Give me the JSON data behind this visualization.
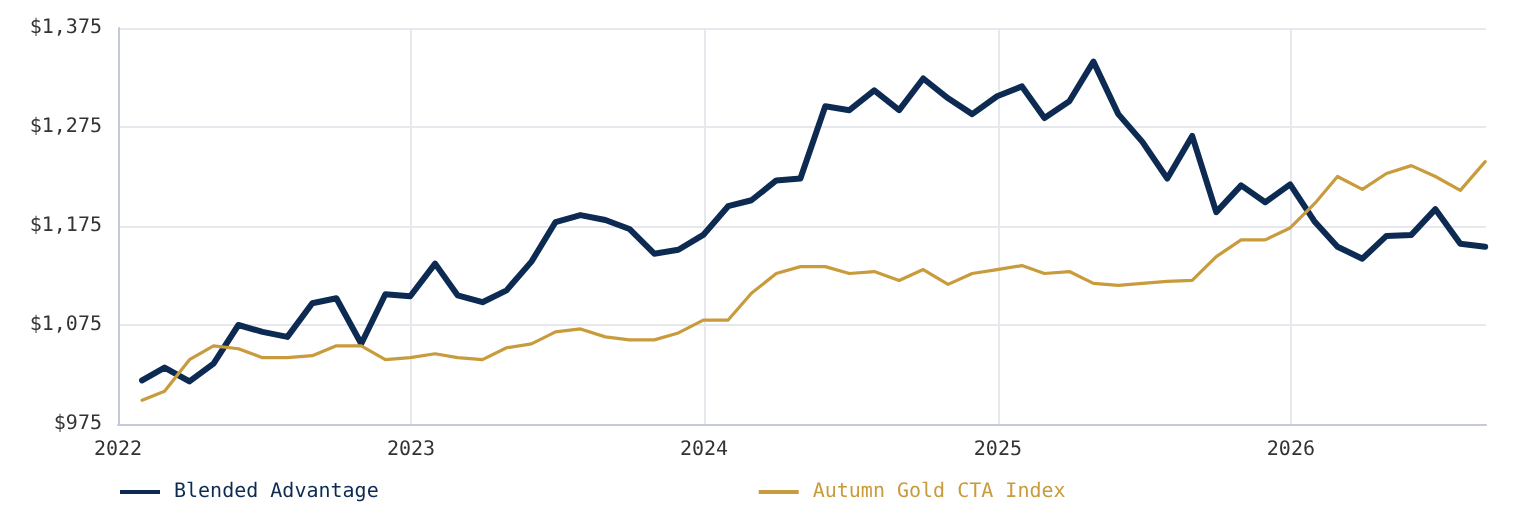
{
  "chart_data": {
    "type": "line",
    "x": [
      "2022-01-31",
      "2022-02-28",
      "2022-03-31",
      "2022-04-30",
      "2022-05-31",
      "2022-06-30",
      "2022-07-31",
      "2022-08-31",
      "2022-09-30",
      "2022-10-31",
      "2022-11-30",
      "2022-12-31",
      "2023-01-31",
      "2023-02-28",
      "2023-03-31",
      "2023-04-30",
      "2023-05-31",
      "2023-06-30",
      "2023-07-31",
      "2023-08-31",
      "2023-09-30",
      "2023-10-31",
      "2023-11-30",
      "2023-12-31",
      "2024-01-31",
      "2024-02-29",
      "2024-03-31",
      "2024-04-30",
      "2024-05-31",
      "2024-06-30",
      "2024-07-31",
      "2024-08-31",
      "2024-09-30",
      "2024-10-31",
      "2024-11-30",
      "2024-12-31",
      "2025-01-31",
      "2025-02-28",
      "2025-03-31",
      "2025-04-30",
      "2025-05-31",
      "2025-06-30",
      "2025-07-31",
      "2025-08-31",
      "2025-09-30",
      "2025-10-31",
      "2025-11-30",
      "2025-12-31",
      "2026-01-31",
      "2026-02-28",
      "2026-03-31",
      "2026-04-30",
      "2026-05-31",
      "2026-06-30",
      "2026-07-31",
      "2026-08-31"
    ],
    "series": [
      {
        "name": "Blended Advantage",
        "color": "#0d2b52",
        "values": [
          1019,
          1032,
          1018,
          1036,
          1075,
          1068,
          1063,
          1097,
          1102,
          1056,
          1106,
          1104,
          1137,
          1105,
          1098,
          1110,
          1139,
          1179,
          1186,
          1181,
          1172,
          1147,
          1151,
          1166,
          1195,
          1201,
          1221,
          1223,
          1296,
          1292,
          1312,
          1292,
          1324,
          1304,
          1288,
          1306,
          1316,
          1284,
          1301,
          1341,
          1288,
          1260,
          1223,
          1266,
          1189,
          1216,
          1199,
          1217,
          1179,
          1154,
          1142,
          1165,
          1166,
          1192,
          1157,
          1154
        ]
      },
      {
        "name": "Autumn Gold CTA Index",
        "color": "#c89b3c",
        "values": [
          999,
          1008,
          1040,
          1054,
          1051,
          1042,
          1042,
          1044,
          1054,
          1054,
          1040,
          1042,
          1046,
          1042,
          1040,
          1052,
          1056,
          1068,
          1071,
          1063,
          1060,
          1060,
          1067,
          1080,
          1080,
          1107,
          1127,
          1134,
          1134,
          1127,
          1129,
          1120,
          1131,
          1116,
          1127,
          1131,
          1135,
          1127,
          1129,
          1117,
          1115,
          1117,
          1119,
          1120,
          1144,
          1161,
          1161,
          1173,
          1198,
          1225,
          1212,
          1228,
          1236,
          1225,
          1211,
          1240
        ]
      }
    ],
    "xlim": [
      "2022-01-01",
      "2026-09-01"
    ],
    "xticks": [
      "2022",
      "2023",
      "2024",
      "2025",
      "2026"
    ],
    "ylim": [
      975,
      1375
    ],
    "yticks": [
      {
        "value": 975,
        "label": "$975"
      },
      {
        "value": 1075,
        "label": "$1,075"
      },
      {
        "value": 1175,
        "label": "$1,175"
      },
      {
        "value": 1275,
        "label": "$1,275"
      },
      {
        "value": 1375,
        "label": "$1,375"
      }
    ],
    "grid": true,
    "legend": "bottom",
    "marker": "none",
    "line_style": "solid"
  }
}
